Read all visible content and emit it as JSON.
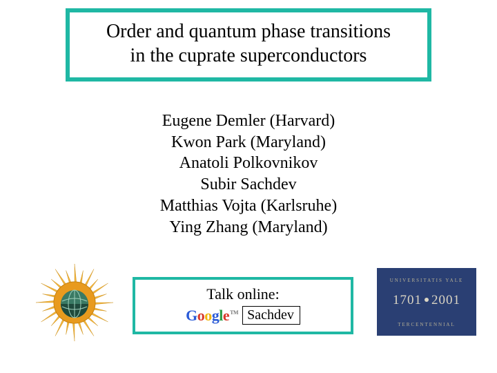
{
  "title": {
    "line1": "Order and quantum phase transitions",
    "line2": "in the cuprate superconductors",
    "border_color": "#1fb8a4",
    "font_size": 28
  },
  "authors": [
    "Eugene Demler (Harvard)",
    "Kwon Park (Maryland)",
    "Anatoli Polkovnikov",
    "Subir Sachdev",
    "Matthias Vojta (Karlsruhe)",
    "Ying Zhang (Maryland)"
  ],
  "talk": {
    "label": "Talk online:",
    "search_term": "Sachdev",
    "border_color": "#1fb8a4"
  },
  "google": {
    "letters": [
      "G",
      "o",
      "o",
      "g",
      "l",
      "e"
    ],
    "colors": [
      "#2b5bd7",
      "#d83a2b",
      "#f2b50c",
      "#2b5bd7",
      "#2a9b45",
      "#d83a2b"
    ]
  },
  "yale": {
    "bg": "#2a3f73",
    "fg": "#dcd6c4",
    "year_left": "1701",
    "year_right": "2001",
    "arc_top": "UNIVERSITATIS YALE",
    "arc_bottom": "TERCENTENNIAL"
  },
  "sun_badge": {
    "ray_color": "#f2b43c",
    "core_color": "#e89a1e",
    "globe_color": "#3a7a64",
    "globe_shadow": "#1f4a3c"
  }
}
